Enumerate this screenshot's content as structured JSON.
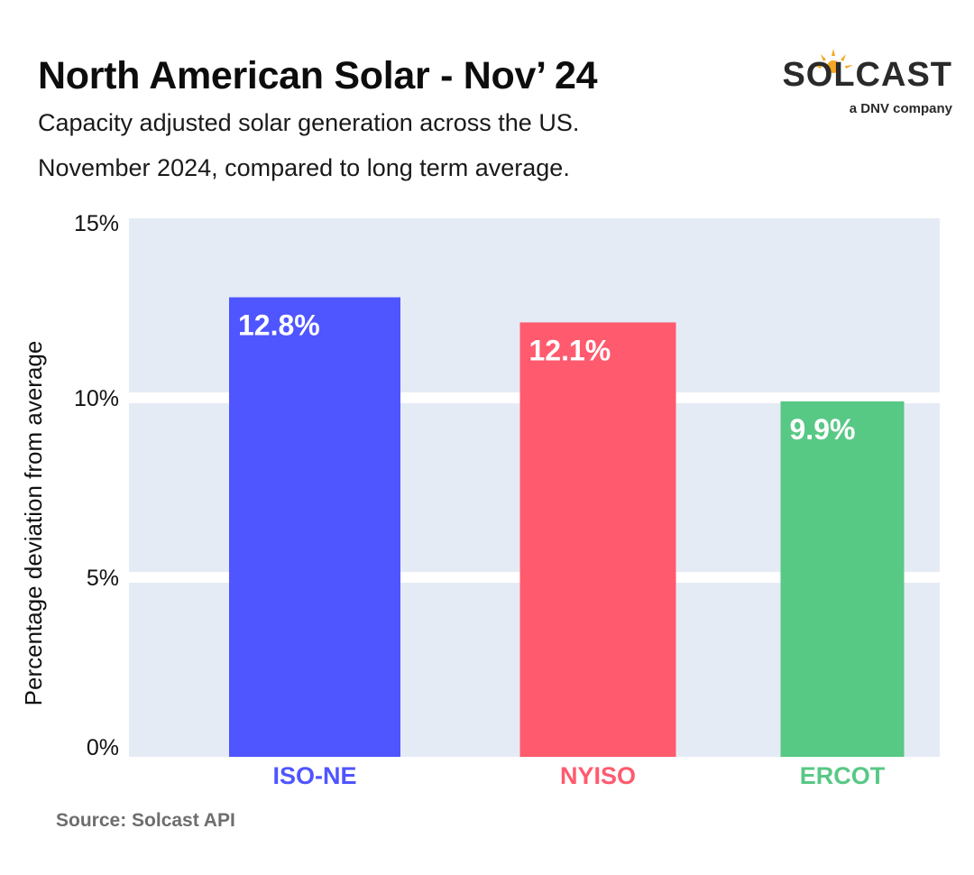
{
  "header": {
    "title": "North American Solar - Nov’ 24",
    "subtitle_line1": "Capacity adjusted solar generation across the US.",
    "subtitle_line2": "November 2024, compared to long term average."
  },
  "logo": {
    "wordmark": "SOLCAST",
    "tagline": "a DNV company",
    "accent_color": "#f5a623"
  },
  "footer": {
    "source": "Source: Solcast API"
  },
  "chart_data": {
    "type": "bar",
    "title": "North American Solar - Nov’ 24",
    "xlabel": "",
    "ylabel": "Percentage deviation from average",
    "categories": [
      "ISO-NE",
      "NYISO",
      "ERCOT"
    ],
    "values": [
      12.8,
      12.1,
      9.9
    ],
    "value_labels": [
      "12.8%",
      "12.1%",
      "9.9%"
    ],
    "colors": [
      "#4f55ff",
      "#ff5a6e",
      "#58c885"
    ],
    "ylim": [
      0,
      15
    ],
    "yticks": [
      0,
      5,
      10,
      15
    ],
    "ytick_labels": [
      "0%",
      "5%",
      "10%",
      "15%"
    ],
    "grid": true,
    "background": "#e5ebf5"
  }
}
